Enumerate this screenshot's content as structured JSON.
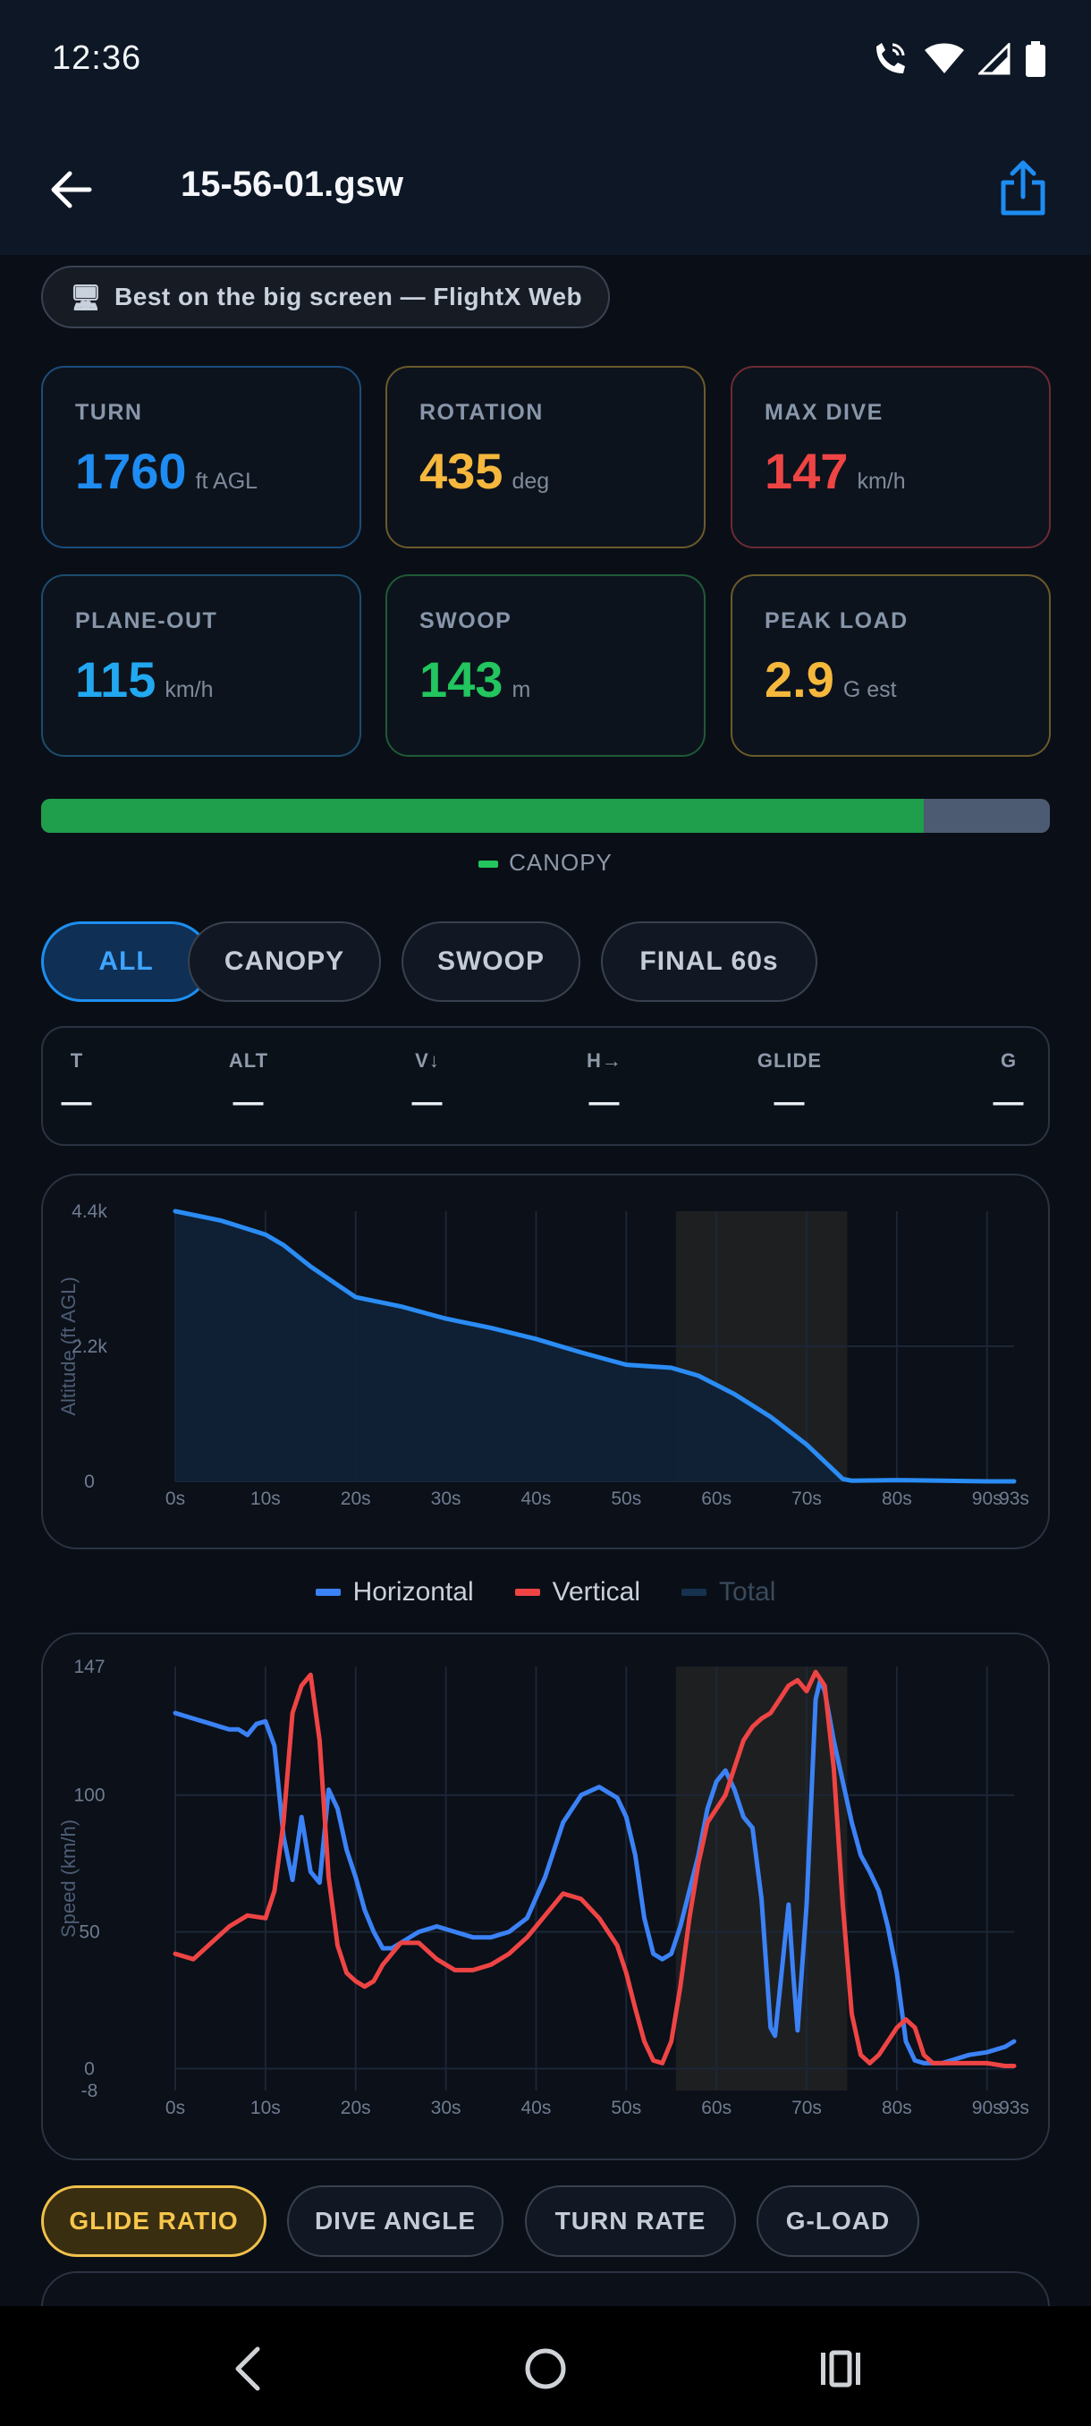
{
  "status_bar": {
    "time": "12:36",
    "icons": [
      "wifi-calling-icon",
      "wifi-icon",
      "signal-icon",
      "battery-icon"
    ]
  },
  "app_bar": {
    "title": "15-56-01.gsw",
    "back_icon": "arrow-left-icon",
    "share_icon": "share-icon"
  },
  "web_pill": {
    "icon": "monitor-icon",
    "label": "Best on the big screen — FlightX Web"
  },
  "stat_cards": [
    {
      "label": "TURN",
      "value": "1760",
      "unit": "ft AGL",
      "color": "#1e8cf2",
      "border": "#1b4d7c"
    },
    {
      "label": "ROTATION",
      "value": "435",
      "unit": "deg",
      "color": "#f5b83d",
      "border": "#6b5a2a"
    },
    {
      "label": "MAX DIVE",
      "value": "147",
      "unit": "km/h",
      "color": "#ef4444",
      "border": "#6b2b34"
    },
    {
      "label": "PLANE-OUT",
      "value": "115",
      "unit": "km/h",
      "color": "#21a8f0",
      "border": "#1b4d6e"
    },
    {
      "label": "SWOOP",
      "value": "143",
      "unit": "m",
      "color": "#22c55e",
      "border": "#1e5a36"
    },
    {
      "label": "PEAK LOAD",
      "value": "2.9",
      "unit": "G est",
      "color": "#f5b83d",
      "border": "#6b5a2a"
    }
  ],
  "phase_bar": {
    "canopy_fraction": 0.875,
    "legend": "CANOPY",
    "canopy_color": "#1f9e4b"
  },
  "filter_chips": [
    {
      "label": "ALL",
      "active": true
    },
    {
      "label": "CANOPY",
      "active": false
    },
    {
      "label": "SWOOP",
      "active": false
    },
    {
      "label": "FINAL 60s",
      "active": false
    }
  ],
  "readout": [
    {
      "label": "T",
      "value": "—"
    },
    {
      "label": "ALT",
      "value": "—"
    },
    {
      "label": "V↓",
      "value": "—"
    },
    {
      "label": "H→",
      "value": "—"
    },
    {
      "label": "GLIDE",
      "value": "—"
    },
    {
      "label": "G",
      "value": "—"
    }
  ],
  "speed_legend": [
    {
      "label": "Horizontal",
      "color": "#3b82f6"
    },
    {
      "label": "Vertical",
      "color": "#ef4444"
    },
    {
      "label": "Total",
      "color": "#16324f"
    }
  ],
  "metric_chips": [
    {
      "label": "GLIDE RATIO",
      "active": true
    },
    {
      "label": "DIVE ANGLE",
      "active": false
    },
    {
      "label": "TURN RATE",
      "active": false
    },
    {
      "label": "G-LOAD",
      "active": false
    }
  ],
  "chart_data": [
    {
      "type": "area",
      "title": "",
      "xlabel": "",
      "ylabel": "Altitude (ft AGL)",
      "x_tick_labels": [
        "0s",
        "10s",
        "20s",
        "30s",
        "40s",
        "50s",
        "60s",
        "70s",
        "80s",
        "90s",
        "93s"
      ],
      "y_tick_labels": [
        "4.4k",
        "2.2k",
        "0"
      ],
      "xlim": [
        0,
        93
      ],
      "ylim": [
        0,
        4400
      ],
      "highlight_range": [
        55.5,
        74.5
      ],
      "grid": true,
      "series": [
        {
          "color": "#2a8cf4",
          "x": [
            0,
            5,
            10,
            12,
            15,
            18,
            20,
            25,
            30,
            35,
            40,
            45,
            50,
            55,
            58,
            62,
            66,
            70,
            73,
            74,
            75,
            80,
            85,
            90,
            93
          ],
          "values": [
            4400,
            4250,
            4020,
            3850,
            3500,
            3200,
            3000,
            2850,
            2650,
            2500,
            2320,
            2100,
            1900,
            1850,
            1720,
            1420,
            1050,
            600,
            180,
            40,
            10,
            20,
            10,
            0,
            0
          ]
        }
      ]
    },
    {
      "type": "line",
      "title": "",
      "xlabel": "",
      "ylabel": "Speed (km/h)",
      "x_tick_labels": [
        "0s",
        "10s",
        "20s",
        "30s",
        "40s",
        "50s",
        "60s",
        "70s",
        "80s",
        "90s",
        "93s"
      ],
      "y_tick_labels": [
        "147",
        "100",
        "50",
        "0",
        "-8"
      ],
      "xlim": [
        0,
        93
      ],
      "ylim": [
        -8,
        147
      ],
      "highlight_range": [
        55.5,
        74.5
      ],
      "grid": true,
      "legend_position": "top-center",
      "series": [
        {
          "name": "Horizontal",
          "color": "#3b82f6",
          "x": [
            0,
            2,
            3,
            4,
            5,
            6,
            7,
            8,
            9,
            10,
            11,
            12,
            13,
            14,
            15,
            16,
            17,
            18,
            19,
            20,
            21,
            22,
            23,
            24,
            25,
            27,
            29,
            31,
            33,
            35,
            37,
            39,
            41,
            43,
            45,
            47,
            49,
            50,
            51,
            52,
            53,
            54,
            55,
            56,
            57,
            58,
            59,
            60,
            61,
            62,
            63,
            64,
            65,
            66,
            66.5,
            67,
            68,
            68.5,
            69,
            70,
            71,
            71.5,
            72,
            73,
            74,
            75,
            76,
            77,
            78,
            79,
            80,
            81,
            82,
            83,
            84,
            85,
            86,
            88,
            90,
            92,
            93
          ],
          "values": [
            130,
            128,
            127,
            126,
            125,
            124,
            124,
            122,
            126,
            127,
            118,
            85,
            69,
            92,
            72,
            68,
            102,
            95,
            80,
            70,
            58,
            50,
            44,
            44,
            46,
            50,
            52,
            50,
            48,
            48,
            50,
            55,
            70,
            90,
            100,
            103,
            99,
            92,
            78,
            55,
            42,
            40,
            42,
            52,
            65,
            78,
            95,
            105,
            109,
            102,
            92,
            88,
            62,
            15,
            12,
            28,
            60,
            35,
            14,
            60,
            135,
            142,
            138,
            120,
            105,
            90,
            78,
            72,
            65,
            52,
            35,
            10,
            3,
            2,
            2,
            2,
            3,
            5,
            6,
            8,
            10
          ]
        },
        {
          "name": "Vertical",
          "color": "#ef4444",
          "x": [
            0,
            2,
            4,
            6,
            8,
            10,
            11,
            12,
            13,
            14,
            15,
            16,
            17,
            18,
            19,
            20,
            21,
            22,
            23,
            25,
            27,
            29,
            31,
            33,
            35,
            37,
            39,
            41,
            43,
            45,
            47,
            49,
            50,
            51,
            52,
            53,
            54,
            55,
            56,
            57,
            58,
            59,
            60,
            61,
            62,
            63,
            64,
            65,
            66,
            67,
            68,
            69,
            70,
            71,
            72,
            73,
            74,
            75,
            76,
            77,
            78,
            79,
            80,
            81,
            82,
            83,
            84,
            86,
            88,
            90,
            92,
            93
          ],
          "values": [
            42,
            40,
            46,
            52,
            56,
            55,
            65,
            90,
            130,
            140,
            144,
            120,
            70,
            45,
            35,
            32,
            30,
            32,
            38,
            46,
            46,
            40,
            36,
            36,
            38,
            42,
            48,
            56,
            64,
            62,
            55,
            45,
            35,
            22,
            10,
            3,
            2,
            10,
            30,
            55,
            75,
            90,
            95,
            100,
            110,
            120,
            125,
            128,
            130,
            135,
            140,
            142,
            138,
            145,
            140,
            110,
            60,
            20,
            5,
            2,
            5,
            10,
            15,
            18,
            15,
            5,
            2,
            2,
            2,
            2,
            1,
            1
          ]
        },
        {
          "name": "Total",
          "color": "#16324f",
          "hidden": true,
          "x": [],
          "values": []
        }
      ]
    }
  ]
}
